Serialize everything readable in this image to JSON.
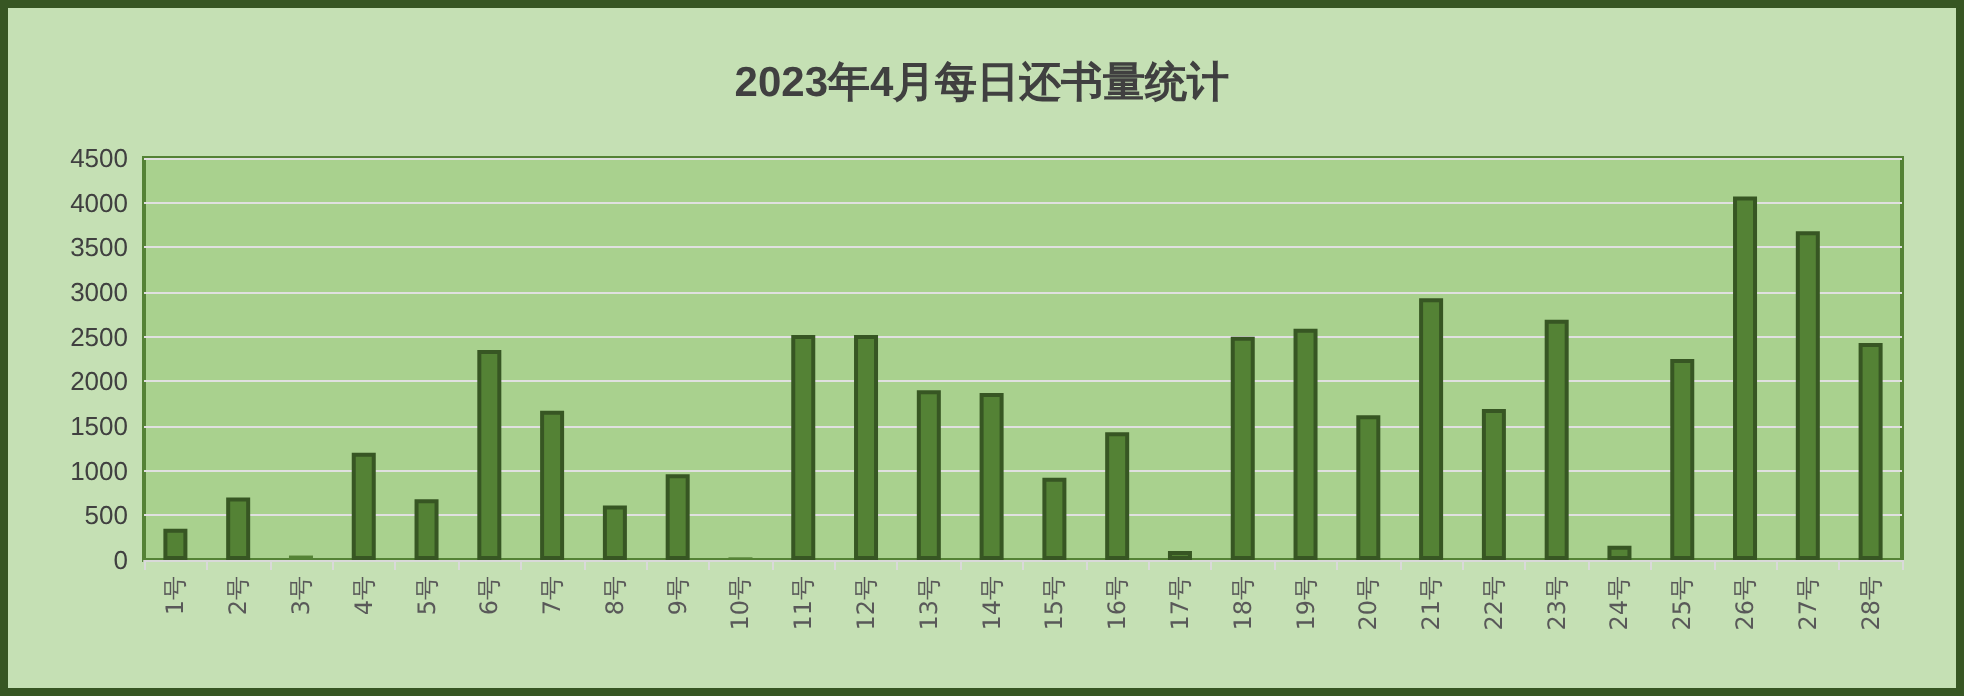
{
  "chart_data": {
    "type": "bar",
    "title": "2023年4月每日还书量统计",
    "categories": [
      "1号",
      "2号",
      "3号",
      "4号",
      "5号",
      "6号",
      "7号",
      "8号",
      "9号",
      "10号",
      "11号",
      "12号",
      "13号",
      "14号",
      "15号",
      "16号",
      "17号",
      "18号",
      "19号",
      "20号",
      "21号",
      "22号",
      "23号",
      "24号",
      "25号",
      "26号",
      "27号",
      "28号"
    ],
    "values": [
      350,
      700,
      50,
      1200,
      680,
      2350,
      1670,
      610,
      960,
      30,
      2520,
      2520,
      1900,
      1870,
      920,
      1430,
      100,
      2500,
      2590,
      1620,
      2930,
      1690,
      2690,
      160,
      2250,
      4070,
      3680,
      2430
    ],
    "color": "#548235",
    "ylim": [
      0,
      4500
    ],
    "yticks": [
      0,
      500,
      1000,
      1500,
      2000,
      2500,
      3000,
      3500,
      4000,
      4500
    ],
    "grid": "y"
  }
}
